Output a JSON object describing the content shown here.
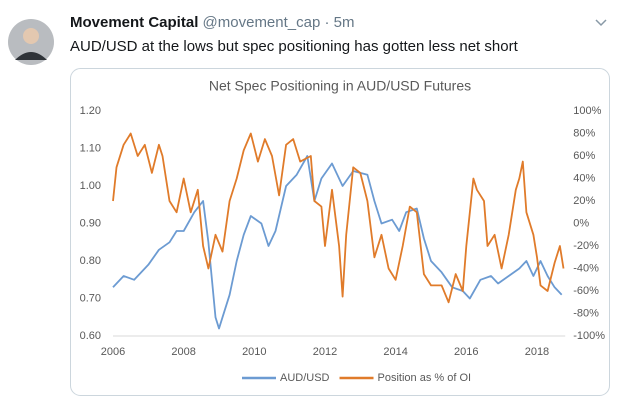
{
  "tweet": {
    "name": "Movement Capital",
    "handle": "@movement_cap",
    "time": "· 5m",
    "text": "AUD/USD at the lows but spec positioning has gotten less net short"
  },
  "chart_data": {
    "type": "line",
    "title": "Net Spec Positioning in AUD/USD Futures",
    "xlim": [
      2006,
      2018.8
    ],
    "xticks": [
      2006,
      2008,
      2010,
      2012,
      2014,
      2016,
      2018
    ],
    "ylim": [
      0.6,
      1.2
    ],
    "yticks": [
      {
        "value": 0.6,
        "label": "0.60"
      },
      {
        "value": 0.7,
        "label": "0.70"
      },
      {
        "value": 0.8,
        "label": "0.80"
      },
      {
        "value": 0.9,
        "label": "0.90"
      },
      {
        "value": 1.0,
        "label": "1.00"
      },
      {
        "value": 1.1,
        "label": "1.10"
      },
      {
        "value": 1.2,
        "label": "1.20"
      }
    ],
    "y2lim": [
      -100,
      100
    ],
    "y2ticks": [
      {
        "value": -100,
        "label": "-100%"
      },
      {
        "value": -80,
        "label": "-80%"
      },
      {
        "value": -60,
        "label": "-60%"
      },
      {
        "value": -40,
        "label": "-40%"
      },
      {
        "value": -20,
        "label": "-20%"
      },
      {
        "value": 0,
        "label": "0%"
      },
      {
        "value": 20,
        "label": "20%"
      },
      {
        "value": 40,
        "label": "40%"
      },
      {
        "value": 60,
        "label": "60%"
      },
      {
        "value": 80,
        "label": "80%"
      },
      {
        "value": 100,
        "label": "100%"
      }
    ],
    "legend": "bottom",
    "series": [
      {
        "name": "AUD/USD",
        "color": "#6c9bd2",
        "x": [
          2006.0,
          2006.3,
          2006.6,
          2007.0,
          2007.3,
          2007.6,
          2007.8,
          2008.0,
          2008.3,
          2008.55,
          2008.7,
          2008.9,
          2009.0,
          2009.1,
          2009.3,
          2009.5,
          2009.7,
          2009.9,
          2010.2,
          2010.4,
          2010.6,
          2010.9,
          2011.2,
          2011.5,
          2011.7,
          2011.9,
          2012.2,
          2012.5,
          2012.8,
          2013.2,
          2013.4,
          2013.6,
          2013.9,
          2014.1,
          2014.3,
          2014.6,
          2014.8,
          2015.0,
          2015.3,
          2015.6,
          2015.9,
          2016.1,
          2016.4,
          2016.7,
          2016.9,
          2017.2,
          2017.5,
          2017.7,
          2017.9,
          2018.1,
          2018.3,
          2018.5,
          2018.7
        ],
        "values": [
          0.73,
          0.76,
          0.75,
          0.79,
          0.83,
          0.85,
          0.88,
          0.88,
          0.93,
          0.96,
          0.85,
          0.65,
          0.62,
          0.65,
          0.71,
          0.8,
          0.87,
          0.92,
          0.9,
          0.84,
          0.88,
          1.0,
          1.03,
          1.08,
          0.96,
          1.02,
          1.06,
          1.0,
          1.04,
          1.03,
          0.96,
          0.9,
          0.91,
          0.88,
          0.93,
          0.94,
          0.86,
          0.8,
          0.77,
          0.73,
          0.72,
          0.7,
          0.75,
          0.76,
          0.74,
          0.76,
          0.78,
          0.8,
          0.76,
          0.8,
          0.76,
          0.73,
          0.71
        ]
      },
      {
        "name": "Position as % of OI",
        "color": "#e07b2a",
        "axis": "y2",
        "x": [
          2006.0,
          2006.1,
          2006.3,
          2006.5,
          2006.7,
          2006.9,
          2007.1,
          2007.3,
          2007.4,
          2007.6,
          2007.8,
          2008.0,
          2008.2,
          2008.4,
          2008.55,
          2008.7,
          2008.9,
          2009.1,
          2009.3,
          2009.5,
          2009.7,
          2009.9,
          2010.1,
          2010.3,
          2010.5,
          2010.7,
          2010.9,
          2011.1,
          2011.3,
          2011.6,
          2011.7,
          2011.9,
          2012.0,
          2012.2,
          2012.4,
          2012.5,
          2012.6,
          2012.8,
          2013.0,
          2013.2,
          2013.4,
          2013.6,
          2013.8,
          2014.0,
          2014.2,
          2014.4,
          2014.6,
          2014.8,
          2015.0,
          2015.3,
          2015.5,
          2015.7,
          2015.9,
          2016.0,
          2016.2,
          2016.3,
          2016.5,
          2016.6,
          2016.8,
          2017.0,
          2017.2,
          2017.4,
          2017.5,
          2017.6,
          2017.7,
          2017.9,
          2018.0,
          2018.1,
          2018.3,
          2018.5,
          2018.65,
          2018.75
        ],
        "values": [
          20,
          50,
          70,
          80,
          60,
          70,
          45,
          70,
          60,
          20,
          10,
          40,
          10,
          30,
          -20,
          -40,
          -10,
          -25,
          20,
          40,
          65,
          80,
          55,
          75,
          60,
          25,
          70,
          75,
          55,
          60,
          20,
          15,
          -20,
          30,
          -20,
          -65,
          -10,
          50,
          45,
          20,
          -30,
          -10,
          -40,
          -50,
          -20,
          15,
          10,
          -45,
          -55,
          -55,
          -70,
          -45,
          -60,
          -20,
          40,
          30,
          20,
          -20,
          -10,
          -40,
          -10,
          30,
          40,
          55,
          10,
          -10,
          -30,
          -55,
          -60,
          -35,
          -20,
          -40
        ]
      }
    ]
  }
}
